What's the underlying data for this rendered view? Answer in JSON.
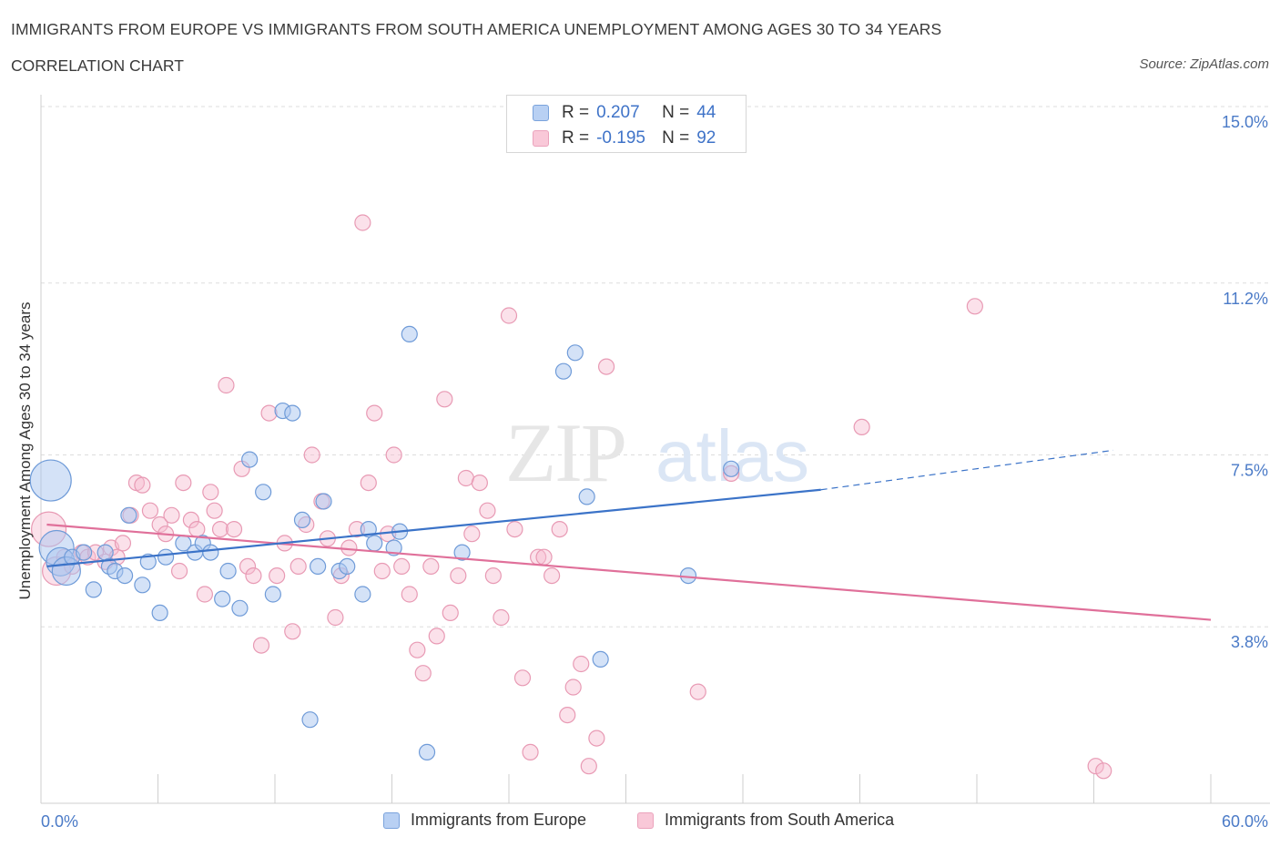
{
  "header": {
    "title": "IMMIGRANTS FROM EUROPE VS IMMIGRANTS FROM SOUTH AMERICA UNEMPLOYMENT AMONG AGES 30 TO 34 YEARS",
    "subtitle": "CORRELATION CHART",
    "source": "Source: ZipAtlas.com"
  },
  "legend": {
    "europe": {
      "r_label": "R =",
      "r_value": "0.207",
      "n_label": "N =",
      "n_value": "44"
    },
    "south_america": {
      "r_label": "R =",
      "r_value": "-0.195",
      "n_label": "N =",
      "n_value": "92"
    }
  },
  "bottom_legend": {
    "europe": "Immigrants from Europe",
    "south_america": "Immigrants from South America"
  },
  "colors": {
    "europe_fill": "#a9c6f0",
    "europe_stroke": "#6f9bd8",
    "europe_line": "#3b73c8",
    "sa_fill": "#f6bcd0",
    "sa_stroke": "#e89ab4",
    "sa_line": "#e0709a",
    "tick_text": "#4a7ac7",
    "grid": "#dddddd"
  },
  "watermark": {
    "zip": "ZIP",
    "atlas": "atlas"
  },
  "chart_data": {
    "type": "scatter",
    "title": "IMMIGRANTS FROM EUROPE VS IMMIGRANTS FROM SOUTH AMERICA UNEMPLOYMENT AMONG AGES 30 TO 34 YEARS",
    "xlabel": "",
    "ylabel": "Unemployment Among Ages 30 to 34 years",
    "xlim": [
      0,
      60
    ],
    "ylim": [
      0,
      15
    ],
    "x_tick_labels": [
      "0.0%",
      "60.0%"
    ],
    "y_ticks": [
      3.8,
      7.5,
      11.2,
      15.0
    ],
    "y_tick_labels": [
      "3.8%",
      "7.5%",
      "11.2%",
      "15.0%"
    ],
    "grid": true,
    "legend_position": "top-center",
    "series": [
      {
        "name": "Immigrants from Europe",
        "R": 0.207,
        "N": 44,
        "trend": {
          "x": [
            0.3,
            40
          ],
          "y": [
            5.1,
            6.75
          ],
          "dashed_extension_to": [
            55,
            7.6
          ]
        },
        "points": [
          [
            0.5,
            6.95,
            5
          ],
          [
            0.8,
            5.5,
            4
          ],
          [
            1.0,
            5.2,
            3
          ],
          [
            1.3,
            5.0,
            3
          ],
          [
            1.6,
            5.3,
            1
          ],
          [
            2.2,
            5.4,
            1
          ],
          [
            2.7,
            4.6,
            1
          ],
          [
            3.3,
            5.4,
            1
          ],
          [
            3.5,
            5.1,
            1
          ],
          [
            3.8,
            5.0,
            1
          ],
          [
            4.3,
            4.9,
            1
          ],
          [
            4.5,
            6.2,
            1
          ],
          [
            5.2,
            4.7,
            1
          ],
          [
            5.5,
            5.2,
            1
          ],
          [
            6.1,
            4.1,
            1
          ],
          [
            6.4,
            5.3,
            1
          ],
          [
            7.3,
            5.6,
            1
          ],
          [
            7.9,
            5.4,
            1
          ],
          [
            8.3,
            5.6,
            1
          ],
          [
            8.7,
            5.4,
            1
          ],
          [
            9.3,
            4.4,
            1
          ],
          [
            9.6,
            5.0,
            1
          ],
          [
            10.2,
            4.2,
            1
          ],
          [
            10.7,
            7.4,
            1
          ],
          [
            11.4,
            6.7,
            1
          ],
          [
            11.9,
            4.5,
            1
          ],
          [
            12.4,
            8.45,
            1
          ],
          [
            12.9,
            8.4,
            1
          ],
          [
            13.4,
            6.1,
            1
          ],
          [
            13.8,
            1.8,
            1
          ],
          [
            14.2,
            5.1,
            1
          ],
          [
            14.5,
            6.5,
            1
          ],
          [
            15.3,
            5.0,
            1
          ],
          [
            15.7,
            5.1,
            1
          ],
          [
            16.5,
            4.5,
            1
          ],
          [
            16.8,
            5.9,
            1
          ],
          [
            17.1,
            5.6,
            1
          ],
          [
            18.1,
            5.5,
            1
          ],
          [
            18.4,
            5.85,
            1
          ],
          [
            18.9,
            10.1,
            1
          ],
          [
            19.8,
            1.1,
            1
          ],
          [
            21.6,
            5.4,
            1
          ],
          [
            26.8,
            9.3,
            1
          ],
          [
            27.4,
            9.7,
            1
          ],
          [
            28.0,
            6.6,
            1
          ],
          [
            28.7,
            3.1,
            1
          ],
          [
            33.2,
            4.9,
            1
          ],
          [
            35.4,
            7.2,
            1
          ]
        ]
      },
      {
        "name": "Immigrants from South America",
        "R": -0.195,
        "N": 92,
        "trend": {
          "x": [
            0.3,
            60
          ],
          "y": [
            6.0,
            3.95
          ]
        },
        "points": [
          [
            0.4,
            5.9,
            4
          ],
          [
            0.8,
            5.0,
            3
          ],
          [
            1.2,
            5.3,
            1
          ],
          [
            1.6,
            5.1,
            1
          ],
          [
            2.1,
            5.4,
            1
          ],
          [
            2.4,
            5.3,
            1
          ],
          [
            2.8,
            5.4,
            1
          ],
          [
            3.3,
            5.2,
            1
          ],
          [
            3.6,
            5.5,
            1
          ],
          [
            3.9,
            5.3,
            1
          ],
          [
            4.2,
            5.6,
            1
          ],
          [
            4.6,
            6.2,
            1
          ],
          [
            4.9,
            6.9,
            1
          ],
          [
            5.2,
            6.85,
            1
          ],
          [
            5.6,
            6.3,
            1
          ],
          [
            6.1,
            6.0,
            1
          ],
          [
            6.4,
            5.8,
            1
          ],
          [
            6.7,
            6.2,
            1
          ],
          [
            7.1,
            5.0,
            1
          ],
          [
            7.3,
            6.9,
            1
          ],
          [
            7.7,
            6.1,
            1
          ],
          [
            8.0,
            5.9,
            1
          ],
          [
            8.4,
            4.5,
            1
          ],
          [
            8.7,
            6.7,
            1
          ],
          [
            8.9,
            6.3,
            1
          ],
          [
            9.2,
            5.9,
            1
          ],
          [
            9.5,
            9.0,
            1
          ],
          [
            9.9,
            5.9,
            1
          ],
          [
            10.3,
            7.2,
            1
          ],
          [
            10.6,
            5.1,
            1
          ],
          [
            10.9,
            4.9,
            1
          ],
          [
            11.3,
            3.4,
            1
          ],
          [
            11.7,
            8.4,
            1
          ],
          [
            12.1,
            4.9,
            1
          ],
          [
            12.5,
            5.6,
            1
          ],
          [
            12.9,
            3.7,
            1
          ],
          [
            13.2,
            5.1,
            1
          ],
          [
            13.6,
            6.0,
            1
          ],
          [
            13.9,
            7.5,
            1
          ],
          [
            14.4,
            6.5,
            1
          ],
          [
            14.7,
            5.7,
            1
          ],
          [
            15.1,
            4.0,
            1
          ],
          [
            15.4,
            4.9,
            1
          ],
          [
            15.8,
            5.5,
            1
          ],
          [
            16.2,
            5.9,
            1
          ],
          [
            16.5,
            12.5,
            1
          ],
          [
            16.8,
            6.9,
            1
          ],
          [
            17.1,
            8.4,
            1
          ],
          [
            17.5,
            5.0,
            1
          ],
          [
            17.8,
            5.8,
            1
          ],
          [
            18.1,
            7.5,
            1
          ],
          [
            18.5,
            5.1,
            1
          ],
          [
            18.9,
            4.5,
            1
          ],
          [
            19.3,
            3.3,
            1
          ],
          [
            19.6,
            2.8,
            1
          ],
          [
            20.0,
            5.1,
            1
          ],
          [
            20.3,
            3.6,
            1
          ],
          [
            20.7,
            8.7,
            1
          ],
          [
            21.0,
            4.1,
            1
          ],
          [
            21.4,
            4.9,
            1
          ],
          [
            21.8,
            7.0,
            1
          ],
          [
            22.1,
            5.8,
            1
          ],
          [
            22.5,
            6.9,
            1
          ],
          [
            22.9,
            6.3,
            1
          ],
          [
            23.2,
            4.9,
            1
          ],
          [
            23.6,
            4.0,
            1
          ],
          [
            24.0,
            10.5,
            1
          ],
          [
            24.3,
            5.9,
            1
          ],
          [
            24.7,
            2.7,
            1
          ],
          [
            25.1,
            1.1,
            1
          ],
          [
            25.5,
            5.3,
            1
          ],
          [
            25.8,
            5.3,
            1
          ],
          [
            26.2,
            4.9,
            1
          ],
          [
            26.6,
            5.9,
            1
          ],
          [
            27.0,
            1.9,
            1
          ],
          [
            27.3,
            2.5,
            1
          ],
          [
            27.7,
            3.0,
            1
          ],
          [
            28.1,
            0.8,
            1
          ],
          [
            28.5,
            1.4,
            1
          ],
          [
            29.0,
            9.4,
            1
          ],
          [
            33.7,
            2.4,
            1
          ],
          [
            35.4,
            7.1,
            1
          ],
          [
            42.1,
            8.1,
            1
          ],
          [
            47.9,
            10.7,
            1
          ],
          [
            54.1,
            0.8,
            1
          ],
          [
            54.5,
            0.7,
            1
          ]
        ]
      }
    ]
  }
}
